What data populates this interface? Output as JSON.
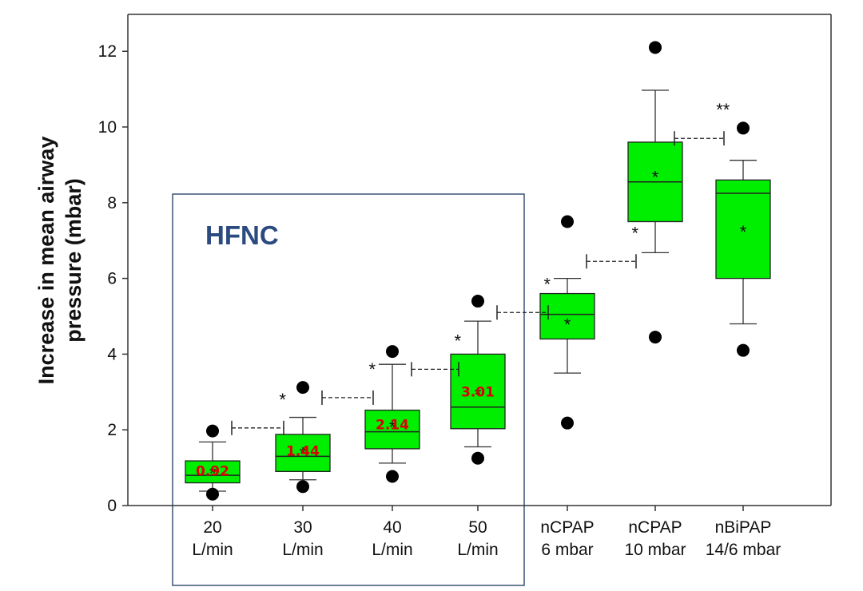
{
  "chart_data": {
    "type": "box",
    "ylabel_lines": [
      "Increase in mean airway",
      "pressure (mbar)"
    ],
    "ylim": [
      0,
      13
    ],
    "yticks": [
      0,
      2,
      4,
      6,
      8,
      10,
      12
    ],
    "categories": [
      {
        "lines": [
          "20",
          "L/min"
        ]
      },
      {
        "lines": [
          "30",
          "L/min"
        ]
      },
      {
        "lines": [
          "40",
          "L/min"
        ]
      },
      {
        "lines": [
          "50",
          "L/min"
        ]
      },
      {
        "lines": [
          "nCPAP",
          "6 mbar"
        ]
      },
      {
        "lines": [
          "nCPAP",
          "10 mbar"
        ]
      },
      {
        "lines": [
          "nBiPAP",
          "14/6 mbar"
        ]
      }
    ],
    "boxes": [
      {
        "q1": 0.6,
        "median": 0.8,
        "q3": 1.18,
        "whisker_low": 0.38,
        "whisker_high": 1.68,
        "mean": 0.92,
        "outliers": [
          1.97,
          0.3
        ],
        "value_label": "0.92"
      },
      {
        "q1": 0.9,
        "median": 1.3,
        "q3": 1.88,
        "whisker_low": 0.68,
        "whisker_high": 2.33,
        "mean": 1.44,
        "outliers": [
          3.12,
          0.5
        ],
        "value_label": "1.44"
      },
      {
        "q1": 1.5,
        "median": 1.95,
        "q3": 2.52,
        "whisker_low": 1.12,
        "whisker_high": 3.73,
        "mean": 2.14,
        "outliers": [
          4.07,
          0.77
        ],
        "value_label": "2.14"
      },
      {
        "q1": 2.03,
        "median": 2.6,
        "q3": 4.0,
        "whisker_low": 1.55,
        "whisker_high": 4.87,
        "mean": 3.01,
        "outliers": [
          5.4,
          1.25
        ],
        "value_label": "3.01"
      },
      {
        "q1": 4.4,
        "median": 5.05,
        "q3": 5.6,
        "whisker_low": 3.5,
        "whisker_high": 6.0,
        "mean": 4.85,
        "outliers": [
          7.5,
          2.18
        ],
        "value_label": ""
      },
      {
        "q1": 7.5,
        "median": 8.55,
        "q3": 9.6,
        "whisker_low": 6.68,
        "whisker_high": 10.97,
        "mean": 8.75,
        "outliers": [
          12.1,
          4.45
        ],
        "value_label": ""
      },
      {
        "q1": 6.0,
        "median": 8.25,
        "q3": 8.6,
        "whisker_low": 4.8,
        "whisker_high": 9.12,
        "mean": 7.3,
        "outliers": [
          9.97,
          4.1
        ],
        "value_label": ""
      }
    ],
    "comparisons": [
      {
        "between": [
          0,
          1
        ],
        "y": 2.05,
        "label": "*"
      },
      {
        "between": [
          1,
          2
        ],
        "y": 2.85,
        "label": "*"
      },
      {
        "between": [
          2,
          3
        ],
        "y": 3.6,
        "label": "*"
      },
      {
        "between": [
          3,
          4
        ],
        "y": 5.1,
        "label": "*"
      },
      {
        "between": [
          4,
          5
        ],
        "y": 6.45,
        "label": "*"
      },
      {
        "between": [
          5,
          6
        ],
        "y": 9.7,
        "label": "**"
      }
    ],
    "group_box": {
      "label": "HFNC",
      "covers": [
        0,
        3
      ]
    },
    "colors": {
      "box_fill": "#00ee00",
      "value_label": "#dd0000",
      "group_box_border": "#3b5375",
      "group_label": "#2b4a80",
      "axis": "#333333"
    }
  }
}
